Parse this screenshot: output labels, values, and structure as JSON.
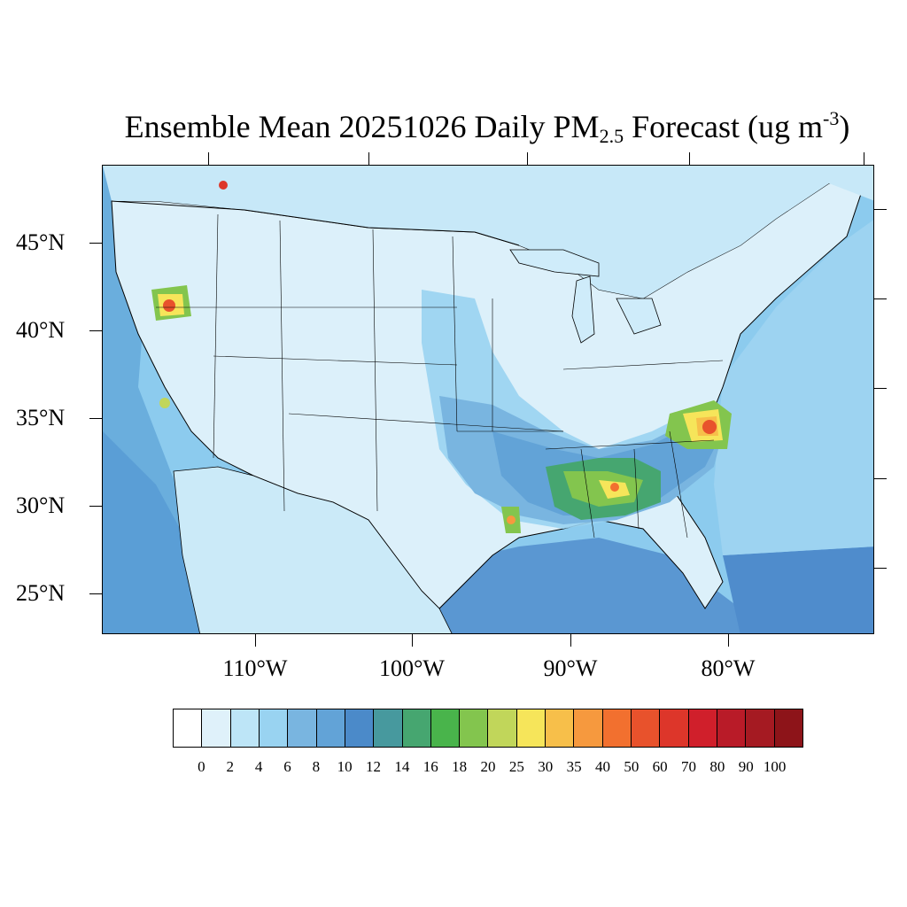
{
  "title": {
    "prefix": "Ensemble Mean 20251026 Daily PM",
    "subscript": "2.5",
    "middle": " Forecast (ug m",
    "superscript": "-3",
    "suffix": ")"
  },
  "latitude_labels": [
    "45°N",
    "40°N",
    "35°N",
    "30°N",
    "25°N"
  ],
  "longitude_labels": [
    "110°W",
    "100°W",
    "90°W",
    "80°W"
  ],
  "colorbar": {
    "labels": [
      "0",
      "2",
      "4",
      "6",
      "8",
      "10",
      "12",
      "14",
      "16",
      "18",
      "20",
      "25",
      "30",
      "35",
      "40",
      "50",
      "60",
      "70",
      "80",
      "90",
      "100"
    ],
    "colors": [
      "#ffffff",
      "#dff1fa",
      "#bde5f7",
      "#99d3f1",
      "#79b5e0",
      "#62a3d7",
      "#4b8ac9",
      "#47999e",
      "#46a670",
      "#49b44b",
      "#83c54e",
      "#c1d65a",
      "#f6e55a",
      "#f7bf4a",
      "#f6993e",
      "#f2702f",
      "#e8522c",
      "#dd362a",
      "#d01f2b",
      "#b91b28",
      "#a51a22",
      "#8d1419"
    ]
  },
  "map_colors": {
    "ocean": "#63a4d8",
    "land_clean": "#dcf0fa",
    "land_light": "#bde5f7",
    "land_mid": "#99d3f1",
    "land_high": "#79b5e0",
    "polluted": "#4b8ac9",
    "green": "#49b44b",
    "yellow": "#f6e55a",
    "orange": "#f6993e",
    "red": "#e8522c"
  }
}
